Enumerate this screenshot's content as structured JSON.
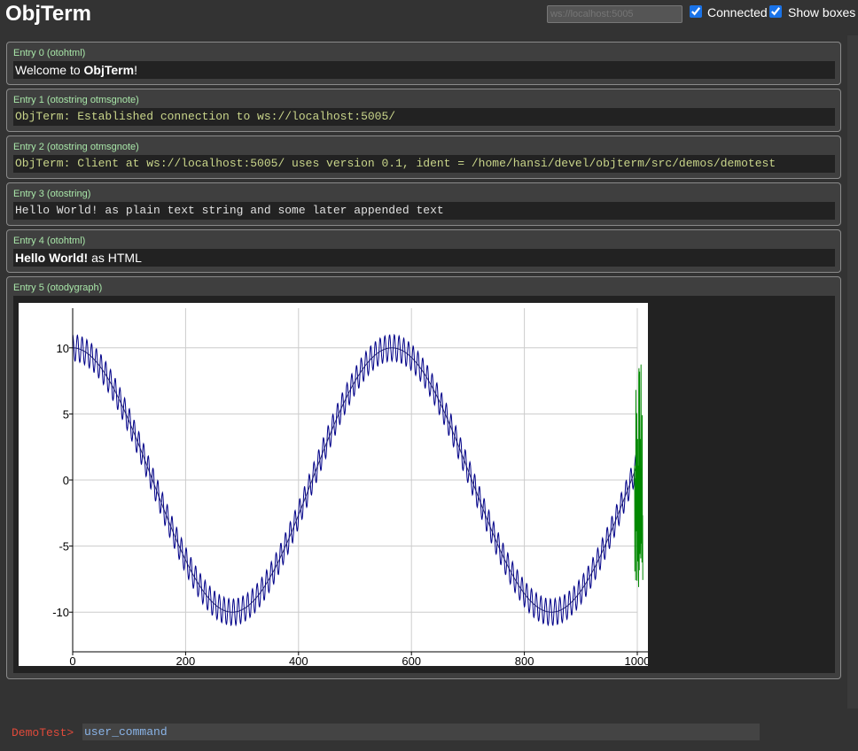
{
  "header": {
    "title": "ObjTerm",
    "url_placeholder": "ws://localhost:5005",
    "connected_label": "Connected",
    "connected_checked": true,
    "show_boxes_label": "Show boxes",
    "show_boxes_checked": true
  },
  "entries": [
    {
      "head": "Entry 0 (otohtml)",
      "body_pre": "Welcome to ",
      "body_bold": "ObjTerm",
      "body_post": "!"
    },
    {
      "head": "Entry 1 (otostring otmsgnote)",
      "body": "ObjTerm: Established connection to ws://localhost:5005/"
    },
    {
      "head": "Entry 2 (otostring otmsgnote)",
      "body": "ObjTerm: Client at ws://localhost:5005/ uses version 0.1, ident = /home/hansi/devel/objterm/src/demos/demotest"
    },
    {
      "head": "Entry 3 (otostring)",
      "body": "Hello World! as plain text string and some later appended text"
    },
    {
      "head": "Entry 4 (otohtml)",
      "body_bold": "Hello World!",
      "body_post": " as HTML"
    },
    {
      "head": "Entry 5 (otodygraph)"
    }
  ],
  "prompt": {
    "label": "DemoTest>",
    "value": "user_command"
  },
  "chart_data": {
    "type": "line",
    "title": "",
    "xlabel": "",
    "ylabel": "",
    "xlim": [
      0,
      1000
    ],
    "ylim": [
      -13,
      13
    ],
    "x_ticks": [
      "0",
      "200",
      "400",
      "600",
      "800",
      "1000"
    ],
    "y_ticks": [
      "10",
      "5",
      "0",
      "-5",
      "-10"
    ],
    "grid": true,
    "legend": "none",
    "series": [
      {
        "formula": "10*cos(x/90)",
        "x_range": [
          0,
          1000
        ],
        "color": "#333366"
      },
      {
        "formula": "10*cos(x/90) + cos(x*0.75)",
        "x_range": [
          0,
          1000
        ],
        "color": "#000088"
      },
      {
        "formula": "noisy oscillation",
        "x_range": [
          995,
          1010
        ],
        "color": "#008800"
      }
    ]
  }
}
